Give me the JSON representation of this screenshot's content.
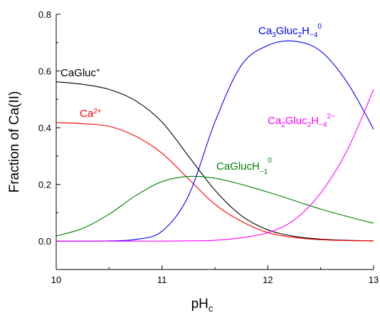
{
  "chart_data": {
    "type": "line",
    "xlabel": "pHc",
    "ylabel": "Fraction of Ca(II)",
    "xlim": [
      10,
      13
    ],
    "ylim": [
      -0.1,
      0.8
    ],
    "x_ticks": [
      10,
      11,
      12,
      13
    ],
    "y_ticks": [
      0.0,
      0.2,
      0.4,
      0.6,
      0.8
    ],
    "grid": false,
    "x": [
      10.0,
      10.25,
      10.5,
      10.75,
      11.0,
      11.25,
      11.5,
      11.75,
      12.0,
      12.25,
      12.5,
      12.75,
      13.0
    ],
    "series": [
      {
        "name": "CaGluc⁺",
        "color": "#000000",
        "values": [
          0.562,
          0.553,
          0.535,
          0.495,
          0.42,
          0.3,
          0.18,
          0.09,
          0.04,
          0.017,
          0.007,
          0.003,
          0.001
        ]
      },
      {
        "name": "Ca²⁺",
        "color": "#ff0000",
        "values": [
          0.418,
          0.414,
          0.405,
          0.37,
          0.31,
          0.22,
          0.13,
          0.07,
          0.03,
          0.013,
          0.005,
          0.002,
          0.001
        ]
      },
      {
        "name": "CaGlucH₋₁⁰",
        "color": "#008000",
        "values": [
          0.018,
          0.045,
          0.095,
          0.16,
          0.21,
          0.228,
          0.222,
          0.2,
          0.173,
          0.143,
          0.113,
          0.087,
          0.063
        ]
      },
      {
        "name": "Ca₃Gluc₂H₋₄⁰",
        "color": "#0000ff",
        "values": [
          0.0,
          0.0,
          0.001,
          0.006,
          0.035,
          0.16,
          0.42,
          0.62,
          0.69,
          0.705,
          0.67,
          0.56,
          0.395
        ]
      },
      {
        "name": "Ca₂Gluc₂H₋₄²⁻",
        "color": "#ff00ff",
        "values": [
          0.0,
          0.0,
          0.0,
          0.0,
          0.0,
          0.001,
          0.003,
          0.012,
          0.03,
          0.075,
          0.17,
          0.32,
          0.535
        ]
      }
    ],
    "labels": {
      "black": {
        "base": "CaGluc",
        "sup": "+"
      },
      "red": {
        "base": "Ca",
        "sup": "2+"
      },
      "green": {
        "base": "CaGlucH",
        "sub1": "−1",
        "sup": "0"
      },
      "blue": {
        "base1": "Ca",
        "sub1": "3",
        "base2": "Gluc",
        "sub2": "2",
        "base3": "H",
        "sub3": "−4",
        "sup": "0"
      },
      "magenta": {
        "base1": "Ca",
        "sub1": "2",
        "base2": "Gluc",
        "sub2": "2",
        "base3": "H",
        "sub3": "−4",
        "sup": "2−"
      }
    },
    "axis_text": {
      "xlabel_base": "pH",
      "xlabel_sub": "c"
    }
  }
}
